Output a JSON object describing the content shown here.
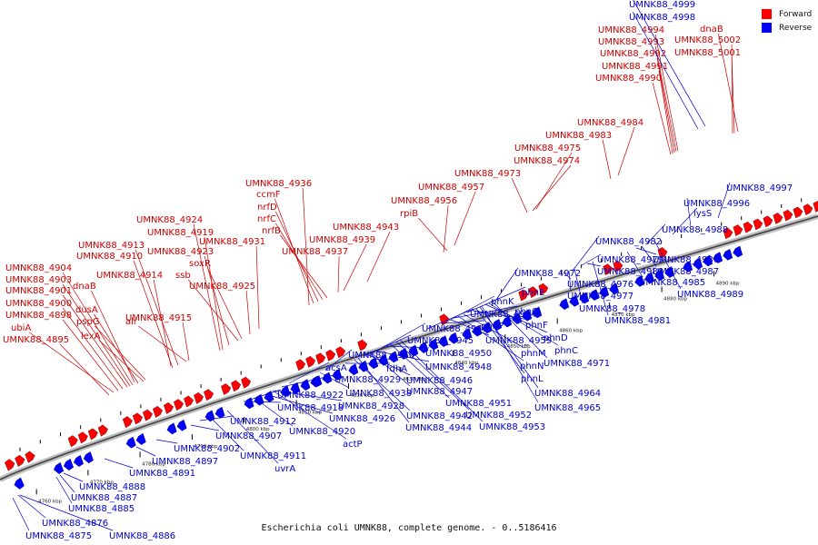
{
  "legend": {
    "forward_label": "Forward",
    "reverse_label": "Reverse",
    "forward_color": "#ff0000",
    "reverse_color": "#0000ff"
  },
  "caption": "Escherichia coli UMNK88, complete genome. - 0..5186416",
  "scale_ticks": [
    "4760 kbp",
    "4770 kbp",
    "4780 kbp",
    "4790 kbp",
    "4800 kbp",
    "4810 kbp",
    "4820 kbp",
    "4830 kbp",
    "4840 kbp",
    "4850 kbp",
    "4860 kbp",
    "4870 kbp",
    "4880 kbp",
    "4890 kbp"
  ],
  "forward_labels": [
    "UMNK88_4895",
    "ubiA",
    "UMNK88_4898",
    "UMNK88_4900",
    "UMNK88_4901",
    "UMNK88_4903",
    "UMNK88_4904",
    "lexA",
    "dusA",
    "pspG",
    "dnaB",
    "UMNK88_4910",
    "UMNK88_4913",
    "UMNK88_4914",
    "alr",
    "UMNK88_4915",
    "UMNK88_4919",
    "UMNK88_4924",
    "ssb",
    "soxR",
    "UMNK88_4923",
    "UMNK88_4925",
    "UMNK88_4931",
    "UMNK88_4936",
    "ccmF",
    "nrfD",
    "nrfC",
    "nrfB",
    "UMNK88_4937",
    "UMNK88_4939",
    "UMNK88_4943",
    "rpiB",
    "UMNK88_4956",
    "UMNK88_4957",
    "UMNK88_4973",
    "UMNK88_4974",
    "UMNK88_4975",
    "UMNK88_4983",
    "UMNK88_4984",
    "UMNK88_4990",
    "UMNK88_4991",
    "UMNK88_4992",
    "UMNK88_4993",
    "UMNK88_4994",
    "dnaB",
    "UMNK88_5002",
    "UMNK88_5001"
  ],
  "reverse_labels": [
    "UMNK88_4875",
    "UMNK88_4876",
    "UMNK88_4886",
    "UMNK88_4885",
    "UMNK88_4887",
    "UMNK88_4888",
    "UMNK88_4891",
    "UMNK88_4897",
    "UMNK88_4902",
    "UMNK88_4907",
    "UMNK88_4911",
    "uvrA",
    "UMNK88_4912",
    "UMNK88_4918",
    "UMNK88_4920",
    "actP",
    "UMNK88_4922",
    "UMNK88_4926",
    "UMNK88_4928",
    "UMNK88_4929",
    "acsA",
    "UMNK88_4938",
    "UMNK88_4940",
    "fdhA",
    "UMNK88_4942",
    "UMNK88_4944",
    "UMNK88_4945",
    "UMNK88_4946",
    "UMNK88_4947",
    "UMNK88_4948",
    "UMNK88_4949",
    "UMNK88_4950",
    "UMNK88_4951",
    "UMNK88_4952",
    "UMNK88_4953",
    "UMNK88_4954",
    "phnP",
    "phnK",
    "UMNK88_4959",
    "phnG",
    "phnN",
    "phnM",
    "phnE",
    "phnF",
    "phnL",
    "UMNK88_4964",
    "UMNK88_4965",
    "phnD",
    "phnC",
    "UMNK88_4971",
    "UMNK88_4972",
    "UMNK88_4976",
    "UMNK88_4977",
    "UMNK88_4978",
    "UMNK88_4979",
    "UMNK88_4980",
    "UMNK88_4981",
    "UMNK88_4982",
    "UMNK88_4985",
    "UMNK88_4986",
    "UMNK88_4987",
    "UMNK88_4988",
    "UMNK88_4989",
    "lysS",
    "UMNK88_4996",
    "UMNK88_4997",
    "UMNK88_4998",
    "UMNK88_4999"
  ]
}
